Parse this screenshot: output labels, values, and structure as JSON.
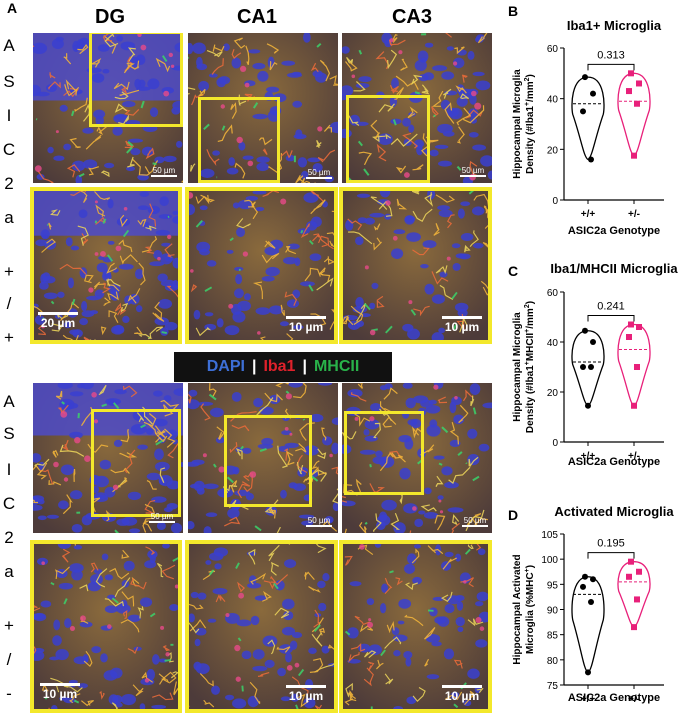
{
  "panel_a": {
    "letter": "A",
    "columns": [
      "DG",
      "CA1",
      "CA3"
    ],
    "row_top_label": [
      "A",
      "S",
      "I",
      "C",
      "2",
      "a",
      "+",
      "/",
      "+"
    ],
    "row_bottom_label": [
      "A",
      "S",
      "I",
      "C",
      "2",
      "a",
      "+",
      "/",
      "-"
    ],
    "scale_bars": {
      "overview": "50 µm",
      "dg_zoom": "20 µm",
      "zoom": "10 µm"
    },
    "legend": {
      "dapi": "DAPI",
      "sep": "|",
      "iba1": "Iba1",
      "mhcii": "MHCII"
    },
    "colors": {
      "dapi": "#3d6fd6",
      "iba1": "#e0212b",
      "mhcii": "#29b24a",
      "highlight": "#f3e82b"
    }
  },
  "chart_data": [
    {
      "panel": "B",
      "type": "violin",
      "title": "Iba1+ Microglia",
      "ylabel": "Hippocampal Microglia Density (#Iba1+/mm2)",
      "xlabel": "ASIC2a Genotype",
      "categories": [
        "+/+",
        "+/-"
      ],
      "ylim": [
        0,
        60
      ],
      "yticks": [
        0,
        20,
        40,
        60
      ],
      "p_value": "0.313",
      "series": [
        {
          "values": [
            48.5,
            42,
            35,
            16
          ],
          "mean": 38
        },
        {
          "values": [
            50,
            46,
            43,
            38,
            17.5
          ],
          "mean": 39
        }
      ]
    },
    {
      "panel": "C",
      "type": "violin",
      "title": "Iba1/MHCII Microglia",
      "ylabel": "Hippocampal Microglia Density (#Iba1+MHCII+/mm2)",
      "xlabel": "ASIC2a Genotype",
      "categories": [
        "+/+",
        "+/-"
      ],
      "ylim": [
        0,
        60
      ],
      "yticks": [
        0,
        20,
        40,
        60
      ],
      "p_value": "0.241",
      "series": [
        {
          "values": [
            44.5,
            40,
            30,
            30,
            14.5
          ],
          "mean": 32
        },
        {
          "values": [
            47,
            46,
            42,
            30,
            14.5
          ],
          "mean": 37
        }
      ]
    },
    {
      "panel": "D",
      "type": "violin",
      "title": "Activated Microglia",
      "ylabel": "Hippocampal Activated Microglia (%MHC+)",
      "xlabel": "ASIC2a Genotype",
      "categories": [
        "+/+",
        "+/-"
      ],
      "ylim": [
        75,
        105
      ],
      "yticks": [
        75,
        80,
        85,
        90,
        95,
        100,
        105
      ],
      "p_value": "0.195",
      "series": [
        {
          "values": [
            96.5,
            96,
            94.5,
            91.5,
            77.5
          ],
          "mean": 93
        },
        {
          "values": [
            99.5,
            97.5,
            96.5,
            92,
            86.5
          ],
          "mean": 95.5
        }
      ]
    }
  ],
  "chart_text": {
    "B": {
      "letter": "B",
      "ylabel_line1": "Hippocampal Microglia",
      "ylabel_line2": "Density (#Iba1",
      "ylabel_sup1": "+",
      "ylabel_line2b": "/mm",
      "ylabel_sup2": "2",
      "ylabel_end": ")"
    },
    "C": {
      "letter": "C",
      "ylabel_line1": "Hippocampal Microglia",
      "ylabel_line2": "Density (#Iba1",
      "ylabel_sup1": "+",
      "ylabel_line2b": "MHCII",
      "ylabel_sup2": "+",
      "ylabel_line2c": "/mm",
      "ylabel_sup3": "2",
      "ylabel_end": ")"
    },
    "D": {
      "letter": "D",
      "ylabel_line1": "Hippocampal Activated",
      "ylabel_line2": "Microglia (%MHC",
      "ylabel_sup1": "+",
      "ylabel_end": ")"
    }
  },
  "chart_colors": {
    "wt": "#000000",
    "het": "#e8207a"
  }
}
